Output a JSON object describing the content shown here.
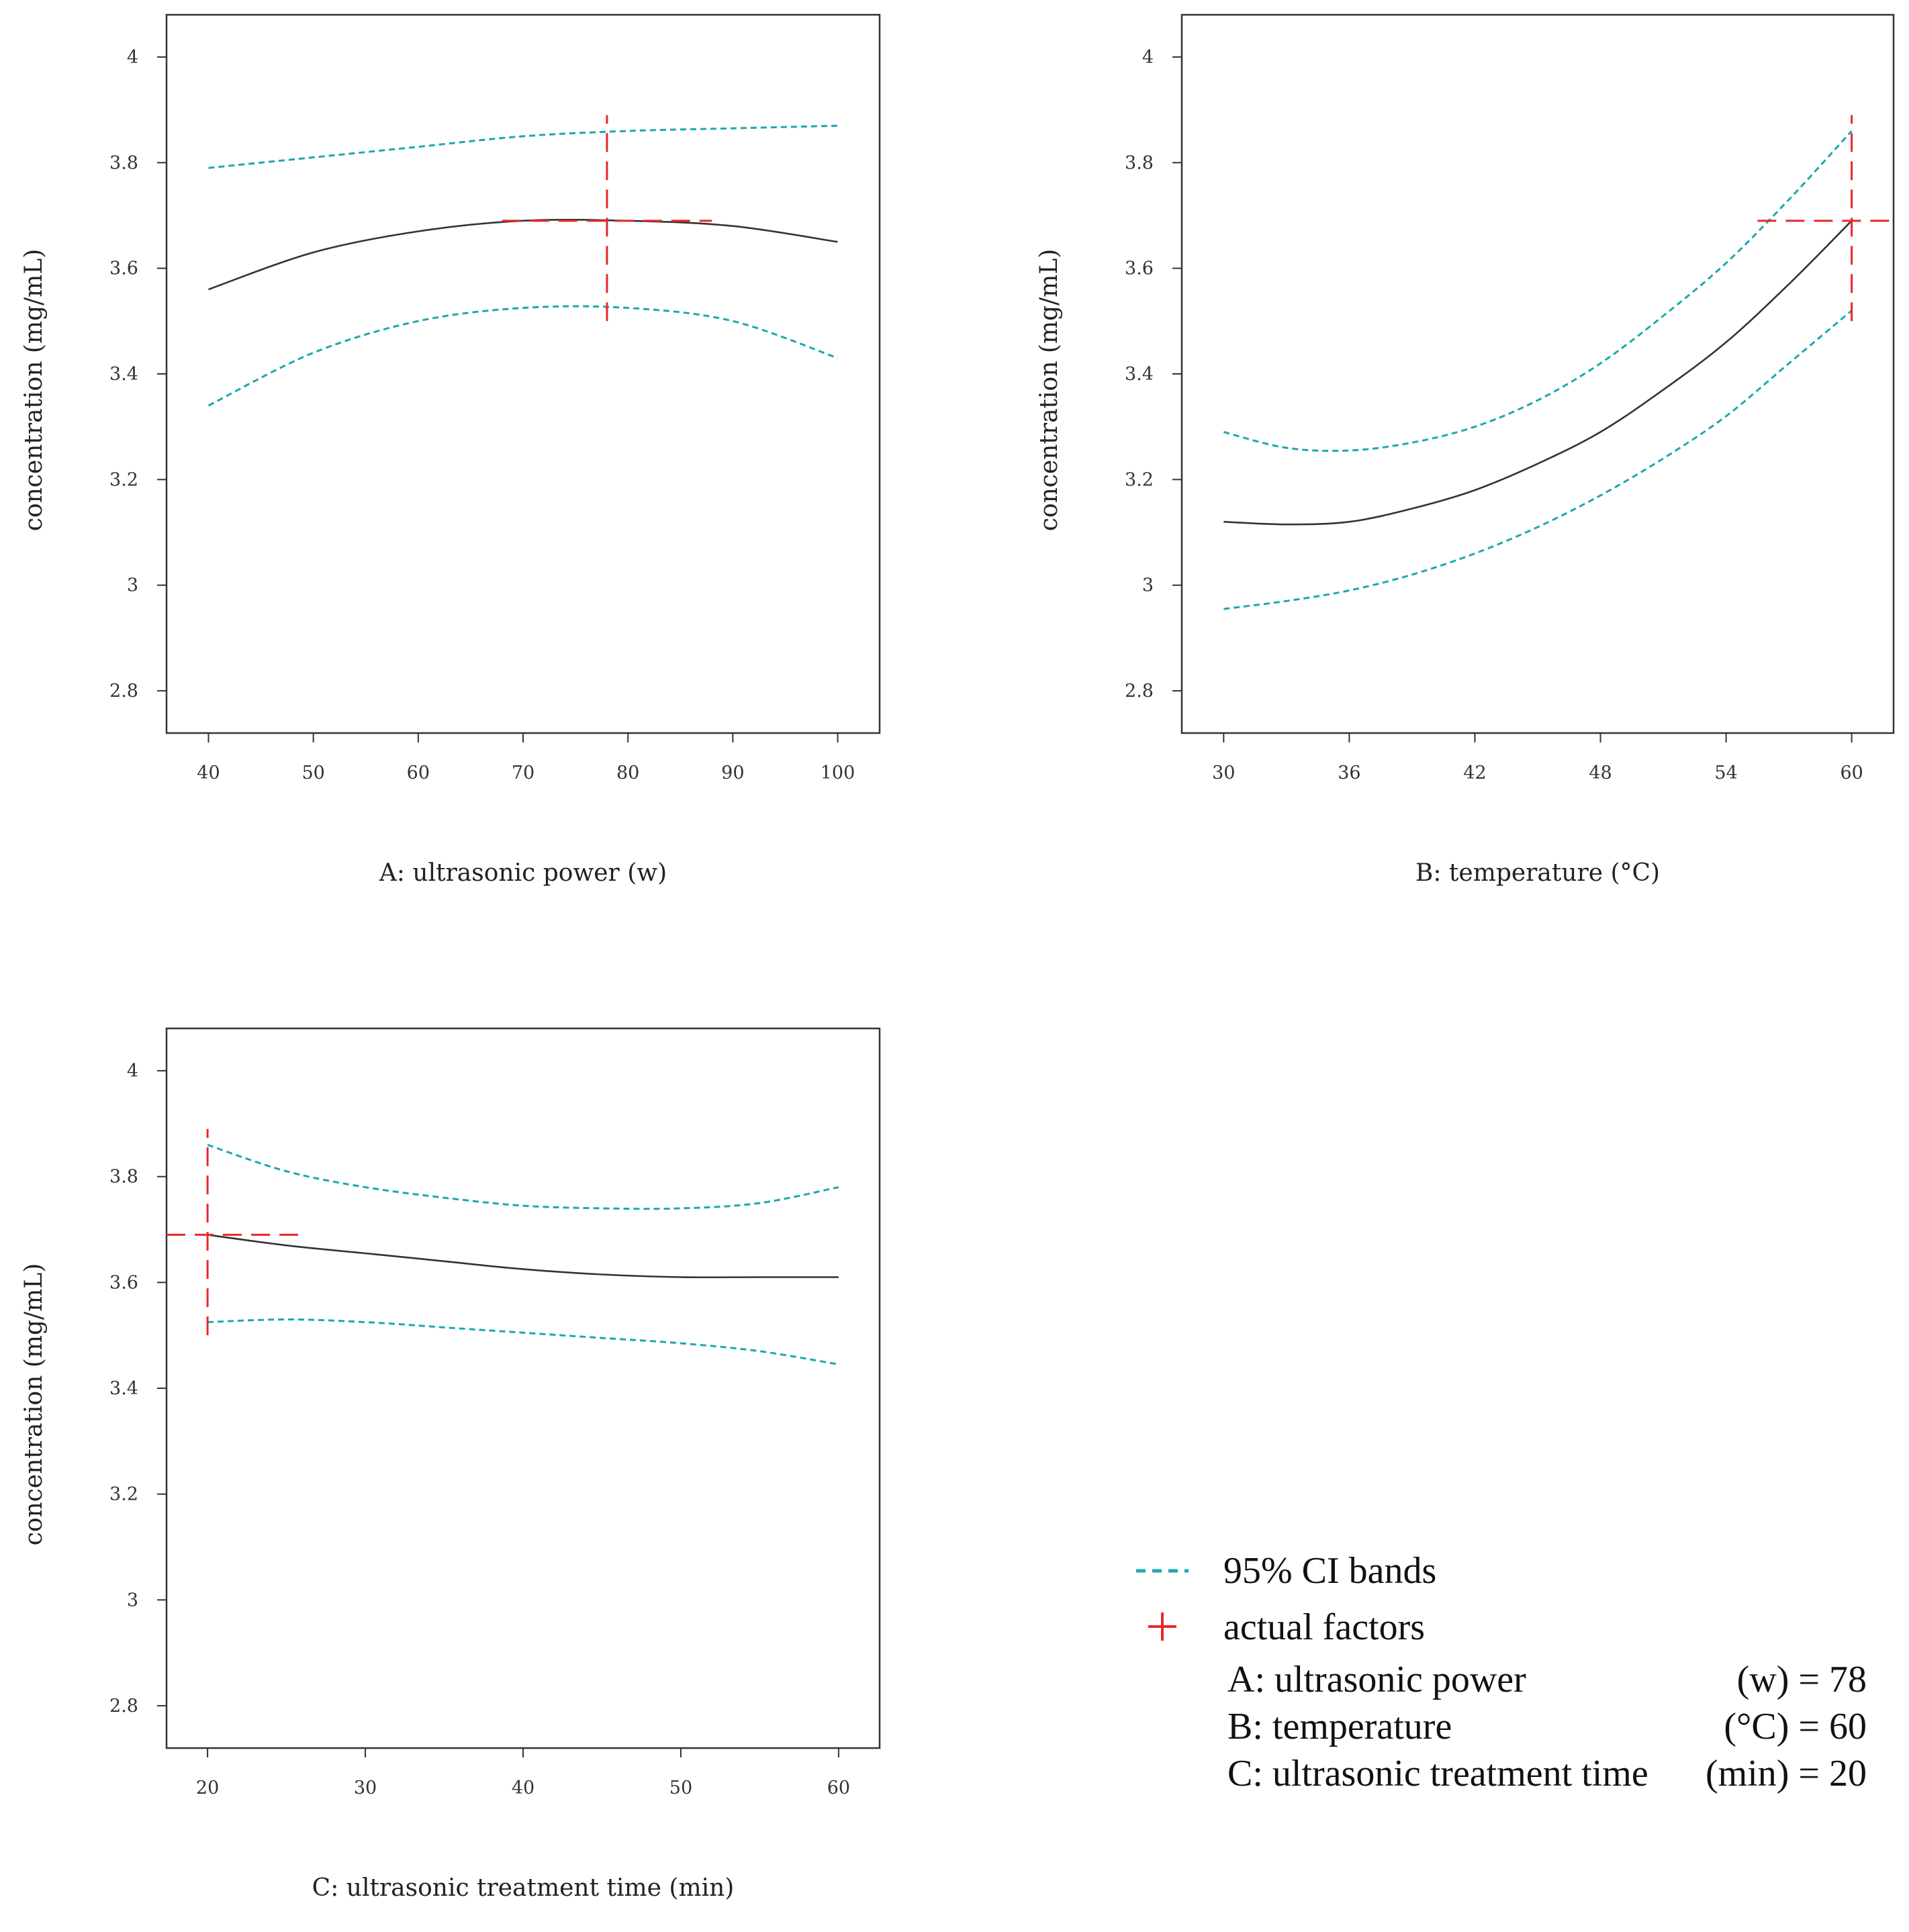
{
  "chart_data": [
    {
      "type": "line",
      "id": "A",
      "xlabel": "A: ultrasonic power (w)",
      "ylabel": "concentration (mg/mL)",
      "xlim": [
        36,
        104
      ],
      "ylim": [
        2.72,
        4.08
      ],
      "xticks": [
        40,
        50,
        60,
        70,
        80,
        90,
        100
      ],
      "yticks": [
        2.8,
        3,
        3.2,
        3.4,
        3.6,
        3.8,
        4
      ],
      "series": [
        {
          "name": "prediction",
          "x": [
            40,
            50,
            60,
            70,
            80,
            90,
            100
          ],
          "values": [
            3.56,
            3.63,
            3.67,
            3.69,
            3.69,
            3.68,
            3.65
          ]
        },
        {
          "name": "95% CI upper",
          "x": [
            40,
            50,
            60,
            70,
            80,
            90,
            100
          ],
          "values": [
            3.79,
            3.81,
            3.83,
            3.85,
            3.86,
            3.865,
            3.87
          ]
        },
        {
          "name": "95% CI lower",
          "x": [
            40,
            50,
            60,
            70,
            80,
            90,
            100
          ],
          "values": [
            3.34,
            3.44,
            3.5,
            3.525,
            3.525,
            3.5,
            3.43
          ]
        }
      ],
      "actual_factor": {
        "x": 78,
        "y": 3.69,
        "h_range": [
          68,
          88
        ],
        "v_range": [
          3.5,
          3.89
        ]
      }
    },
    {
      "type": "line",
      "id": "B",
      "xlabel": "B: temperature (°C)",
      "ylabel": "concentration (mg/mL)",
      "xlim": [
        28,
        62
      ],
      "ylim": [
        2.72,
        4.08
      ],
      "xticks": [
        30,
        36,
        42,
        48,
        54,
        60
      ],
      "yticks": [
        2.8,
        3,
        3.2,
        3.4,
        3.6,
        3.8,
        4
      ],
      "series": [
        {
          "name": "prediction",
          "x": [
            30,
            33,
            36,
            39,
            42,
            45,
            48,
            51,
            54,
            57,
            60
          ],
          "values": [
            3.12,
            3.115,
            3.12,
            3.145,
            3.18,
            3.23,
            3.29,
            3.37,
            3.46,
            3.57,
            3.69
          ]
        },
        {
          "name": "95% CI upper",
          "x": [
            30,
            33,
            36,
            39,
            42,
            45,
            48,
            51,
            54,
            57,
            60
          ],
          "values": [
            3.29,
            3.26,
            3.255,
            3.27,
            3.3,
            3.35,
            3.42,
            3.51,
            3.61,
            3.73,
            3.86
          ]
        },
        {
          "name": "95% CI lower",
          "x": [
            30,
            33,
            36,
            39,
            42,
            45,
            48,
            51,
            54,
            57,
            60
          ],
          "values": [
            2.955,
            2.97,
            2.99,
            3.02,
            3.06,
            3.11,
            3.17,
            3.24,
            3.32,
            3.42,
            3.52
          ]
        }
      ],
      "actual_factor": {
        "x": 60,
        "y": 3.69,
        "h_range": [
          55.5,
          62
        ],
        "v_range": [
          3.5,
          3.89
        ]
      }
    },
    {
      "type": "line",
      "id": "C",
      "xlabel": "C: ultrasonic treatment time (min)",
      "ylabel": "concentration (mg/mL)",
      "xlim": [
        17.4,
        62.6
      ],
      "ylim": [
        2.72,
        4.08
      ],
      "xticks": [
        20,
        30,
        40,
        50,
        60
      ],
      "yticks": [
        2.8,
        3,
        3.2,
        3.4,
        3.6,
        3.8,
        4
      ],
      "series": [
        {
          "name": "prediction",
          "x": [
            20,
            25,
            30,
            35,
            40,
            45,
            50,
            55,
            60
          ],
          "values": [
            3.69,
            3.67,
            3.655,
            3.64,
            3.625,
            3.615,
            3.61,
            3.61,
            3.61
          ]
        },
        {
          "name": "95% CI upper",
          "x": [
            20,
            25,
            30,
            35,
            40,
            45,
            50,
            55,
            60
          ],
          "values": [
            3.86,
            3.81,
            3.78,
            3.76,
            3.745,
            3.74,
            3.74,
            3.75,
            3.78
          ]
        },
        {
          "name": "95% CI lower",
          "x": [
            20,
            25,
            30,
            35,
            40,
            45,
            50,
            55,
            60
          ],
          "values": [
            3.525,
            3.53,
            3.525,
            3.515,
            3.505,
            3.495,
            3.485,
            3.47,
            3.445
          ]
        }
      ],
      "actual_factor": {
        "x": 20,
        "y": 3.69,
        "h_range": [
          17.4,
          26
        ],
        "v_range": [
          3.5,
          3.89
        ]
      }
    }
  ],
  "legend": {
    "ci_label": "95% CI bands",
    "actual_label": "actual factors",
    "factors": [
      {
        "name": "A: ultrasonic power",
        "value": "(w) = 78"
      },
      {
        "name": "B: temperature",
        "value": "(°C) = 60"
      },
      {
        "name": "C: ultrasonic treatment time",
        "value": "(min) = 20"
      }
    ]
  },
  "colors": {
    "prediction": "#333333",
    "ci": "#1aa9ad",
    "actual": "#e8272a",
    "axis": "#333333"
  }
}
